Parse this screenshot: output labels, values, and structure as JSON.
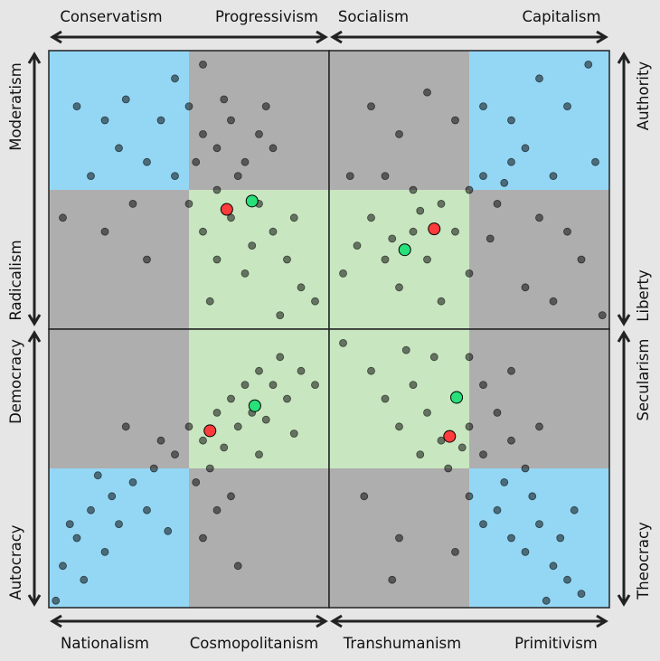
{
  "chart_data": {
    "type": "scatter",
    "grid": false,
    "xlim": [
      -1,
      1
    ],
    "ylim": [
      -1,
      1
    ],
    "colors": {
      "background": "#e6e6e6",
      "blue_region": "#94d7f5",
      "gray_region": "#aeaeae",
      "green_region": "#c8e6c0",
      "points": "#000000",
      "marker_red": "#ff3b3b",
      "marker_green": "#27e07a"
    },
    "panels": [
      {
        "id": "top-left",
        "xlabels": [
          "Conservatism",
          "Progressivism"
        ],
        "ylabels": [
          "Moderatism",
          "Radicalism"
        ],
        "quadrants": [
          "blue",
          "gray",
          "gray",
          "green"
        ],
        "red_point": [
          0.27,
          -0.14
        ],
        "green_point": [
          0.45,
          -0.08
        ],
        "points": [
          [
            -0.8,
            0.6
          ],
          [
            -0.6,
            0.5
          ],
          [
            -0.5,
            0.3
          ],
          [
            -0.7,
            0.1
          ],
          [
            -0.9,
            -0.2
          ],
          [
            -0.4,
            -0.1
          ],
          [
            -0.3,
            0.2
          ],
          [
            -0.2,
            0.5
          ],
          [
            0,
            0.6
          ],
          [
            0.1,
            0.4
          ],
          [
            0.2,
            0.3
          ],
          [
            0.3,
            0.5
          ],
          [
            0.4,
            0.2
          ],
          [
            0.5,
            0.4
          ],
          [
            0.6,
            0.3
          ],
          [
            0.2,
            0
          ],
          [
            0.3,
            -0.2
          ],
          [
            0.5,
            -0.1
          ],
          [
            0.6,
            -0.3
          ],
          [
            0.7,
            -0.5
          ],
          [
            0.8,
            -0.7
          ],
          [
            0.9,
            -0.8
          ],
          [
            0.4,
            -0.6
          ],
          [
            0.2,
            -0.5
          ],
          [
            0.1,
            -0.3
          ],
          [
            0,
            -0.1
          ],
          [
            -0.1,
            0.1
          ],
          [
            0.35,
            0.1
          ],
          [
            0.45,
            -0.4
          ],
          [
            0.65,
            -0.9
          ],
          [
            0.25,
            0.65
          ],
          [
            -0.3,
            -0.5
          ],
          [
            -0.6,
            -0.3
          ],
          [
            -0.1,
            0.8
          ],
          [
            0.1,
            0.9
          ],
          [
            0.55,
            0.6
          ],
          [
            0.75,
            -0.2
          ],
          [
            0.15,
            -0.8
          ],
          [
            -0.45,
            0.65
          ],
          [
            0.05,
            0.2
          ]
        ]
      },
      {
        "id": "top-right",
        "xlabels": [
          "Socialism",
          "Capitalism"
        ],
        "ylabels": [
          "Authority",
          "Liberty"
        ],
        "quadrants": [
          "gray",
          "blue",
          "green",
          "gray"
        ],
        "red_point": [
          -0.25,
          -0.28
        ],
        "green_point": [
          -0.46,
          -0.43
        ],
        "points": [
          [
            -0.9,
            -0.6
          ],
          [
            -0.8,
            -0.4
          ],
          [
            -0.7,
            -0.2
          ],
          [
            -0.6,
            -0.5
          ],
          [
            -0.5,
            -0.7
          ],
          [
            -0.4,
            -0.3
          ],
          [
            -0.3,
            -0.5
          ],
          [
            -0.2,
            -0.1
          ],
          [
            -0.1,
            -0.3
          ],
          [
            0,
            0
          ],
          [
            0.1,
            0.1
          ],
          [
            0.2,
            -0.1
          ],
          [
            0.3,
            0.2
          ],
          [
            0.4,
            0.3
          ],
          [
            0.5,
            -0.2
          ],
          [
            0.6,
            0.1
          ],
          [
            0.7,
            -0.3
          ],
          [
            0.8,
            -0.5
          ],
          [
            0.9,
            0.2
          ],
          [
            -0.7,
            0.6
          ],
          [
            -0.5,
            0.4
          ],
          [
            -0.3,
            0.7
          ],
          [
            -0.1,
            0.5
          ],
          [
            0.1,
            0.6
          ],
          [
            0.3,
            0.5
          ],
          [
            0.5,
            0.8
          ],
          [
            0.7,
            0.6
          ],
          [
            -0.85,
            0.1
          ],
          [
            -0.6,
            0.1
          ],
          [
            -0.2,
            -0.8
          ],
          [
            0,
            -0.6
          ],
          [
            0.4,
            -0.7
          ],
          [
            0.6,
            -0.8
          ],
          [
            0.95,
            -0.9
          ],
          [
            -0.4,
            0
          ],
          [
            -0.55,
            -0.35
          ],
          [
            -0.35,
            -0.15
          ],
          [
            0.15,
            -0.35
          ],
          [
            0.25,
            0.05
          ],
          [
            0.85,
            0.9
          ]
        ]
      },
      {
        "id": "bottom-left",
        "xlabels": [
          "Nationalism",
          "Cosmopolitanism"
        ],
        "ylabels": [
          "Democracy",
          "Autocracy"
        ],
        "quadrants": [
          "gray",
          "green",
          "blue",
          "gray"
        ],
        "red_point": [
          0.15,
          0.27
        ],
        "green_point": [
          0.47,
          0.45
        ],
        "points": [
          [
            -0.95,
            -0.95
          ],
          [
            -0.9,
            -0.7
          ],
          [
            -0.8,
            -0.5
          ],
          [
            -0.75,
            -0.8
          ],
          [
            -0.7,
            -0.3
          ],
          [
            -0.6,
            -0.6
          ],
          [
            -0.55,
            -0.2
          ],
          [
            -0.5,
            -0.4
          ],
          [
            -0.4,
            -0.1
          ],
          [
            -0.3,
            -0.3
          ],
          [
            -0.25,
            0
          ],
          [
            -0.2,
            0.2
          ],
          [
            -0.1,
            0.1
          ],
          [
            0,
            0.3
          ],
          [
            0.05,
            -0.1
          ],
          [
            0.1,
            0.2
          ],
          [
            0.2,
            0.4
          ],
          [
            0.25,
            0.15
          ],
          [
            0.3,
            0.5
          ],
          [
            0.35,
            0.3
          ],
          [
            0.4,
            0.6
          ],
          [
            0.45,
            0.4
          ],
          [
            0.5,
            0.7
          ],
          [
            0.55,
            0.35
          ],
          [
            0.6,
            0.6
          ],
          [
            0.65,
            0.8
          ],
          [
            0.7,
            0.5
          ],
          [
            0.8,
            0.7
          ],
          [
            0.9,
            0.6
          ],
          [
            0.2,
            -0.3
          ],
          [
            0.1,
            -0.5
          ],
          [
            0.35,
            -0.7
          ],
          [
            0.3,
            -0.2
          ],
          [
            0.15,
            0
          ],
          [
            -0.45,
            0.3
          ],
          [
            -0.85,
            -0.4
          ],
          [
            -0.65,
            -0.05
          ],
          [
            0.5,
            0.1
          ],
          [
            -0.15,
            -0.45
          ],
          [
            0.75,
            0.25
          ]
        ]
      },
      {
        "id": "bottom-right",
        "xlabels": [
          "Transhumanism",
          "Primitivism"
        ],
        "ylabels": [
          "Secularism",
          "Theocracy"
        ],
        "quadrants": [
          "green",
          "gray",
          "gray",
          "blue"
        ],
        "red_point": [
          -0.14,
          0.23
        ],
        "green_point": [
          -0.09,
          0.51
        ],
        "points": [
          [
            -0.9,
            0.9
          ],
          [
            -0.7,
            0.7
          ],
          [
            -0.6,
            0.5
          ],
          [
            -0.5,
            0.3
          ],
          [
            -0.4,
            0.6
          ],
          [
            -0.3,
            0.4
          ],
          [
            -0.2,
            0.2
          ],
          [
            -0.1,
            0.5
          ],
          [
            0,
            0.3
          ],
          [
            0.1,
            0.6
          ],
          [
            0.2,
            0.4
          ],
          [
            -0.35,
            0.1
          ],
          [
            -0.15,
            0
          ],
          [
            0,
            -0.2
          ],
          [
            0.1,
            0.1
          ],
          [
            0.3,
            0.2
          ],
          [
            0.4,
            0
          ],
          [
            0.5,
            0.3
          ],
          [
            0.1,
            -0.4
          ],
          [
            0.2,
            -0.3
          ],
          [
            0.3,
            -0.5
          ],
          [
            0.4,
            -0.6
          ],
          [
            0.5,
            -0.4
          ],
          [
            0.6,
            -0.7
          ],
          [
            0.7,
            -0.8
          ],
          [
            0.8,
            -0.9
          ],
          [
            0.55,
            -0.95
          ],
          [
            0.65,
            -0.5
          ],
          [
            -0.1,
            -0.6
          ],
          [
            -0.5,
            -0.5
          ],
          [
            -0.75,
            -0.2
          ],
          [
            -0.25,
            0.8
          ],
          [
            0,
            0.8
          ],
          [
            0.3,
            0.7
          ],
          [
            -0.45,
            0.85
          ],
          [
            -0.05,
            0.15
          ],
          [
            0.25,
            -0.1
          ],
          [
            0.45,
            -0.2
          ],
          [
            0.75,
            -0.3
          ],
          [
            -0.55,
            -0.8
          ]
        ]
      }
    ]
  }
}
